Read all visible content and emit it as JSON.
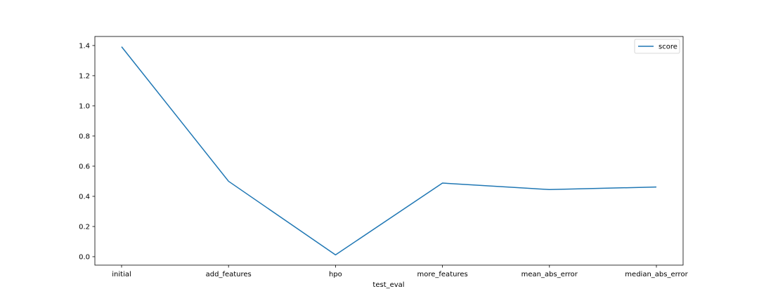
{
  "chart_data": {
    "type": "line",
    "categories": [
      "initial",
      "add_features",
      "hpo",
      "more_features",
      "mean_abs_error",
      "median_abs_error"
    ],
    "series": [
      {
        "name": "score",
        "values": [
          1.392,
          0.5,
          0.012,
          0.488,
          0.445,
          0.462
        ],
        "color": "#1f77b4"
      }
    ],
    "xlabel": "test_eval",
    "ylabel": "",
    "ylim": [
      -0.056,
      1.46
    ],
    "yticks": [
      0.0,
      0.2,
      0.4,
      0.6,
      0.8,
      1.0,
      1.2,
      1.4
    ],
    "ytick_labels": [
      "0.0",
      "0.2",
      "0.4",
      "0.6",
      "0.8",
      "1.0",
      "1.2",
      "1.4"
    ],
    "grid": false,
    "legend_position": "top-right"
  }
}
